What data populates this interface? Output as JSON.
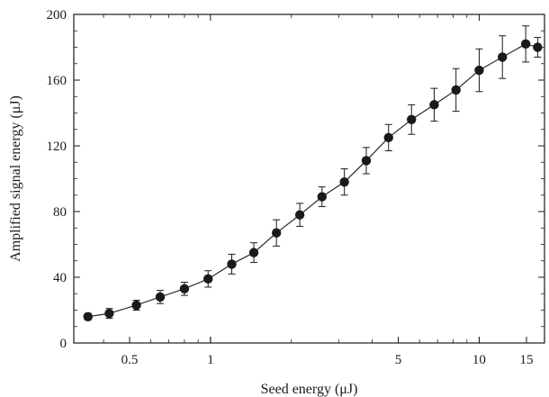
{
  "chart_data": {
    "type": "scatter",
    "title": "",
    "xlabel": "Seed energy (μJ)",
    "ylabel": "Amplified signal energy (μJ)",
    "xscale": "log",
    "xlim": [
      0.31,
      17.5
    ],
    "ylim": [
      0,
      200
    ],
    "xticks": [
      0.5,
      1,
      5,
      10,
      15
    ],
    "xtick_labels": [
      "0.5",
      "1",
      "5",
      "10",
      "15"
    ],
    "yticks": [
      0,
      40,
      80,
      120,
      160,
      200
    ],
    "ytick_labels": [
      "0",
      "40",
      "80",
      "120",
      "160",
      "200"
    ],
    "grid": false,
    "marker": "circle",
    "line": true,
    "color": "#1a1a1a",
    "series": [
      {
        "x": [
          0.35,
          0.42,
          0.53,
          0.65,
          0.8,
          0.98,
          1.2,
          1.45,
          1.76,
          2.15,
          2.6,
          3.15,
          3.8,
          4.6,
          5.6,
          6.8,
          8.2,
          10.0,
          12.2,
          14.9,
          16.5
        ],
        "y": [
          16,
          18,
          23,
          28,
          33,
          39,
          48,
          55,
          67,
          78,
          89,
          98,
          111,
          125,
          136,
          145,
          154,
          166,
          174,
          182,
          180
        ],
        "err": [
          2,
          3,
          3,
          4,
          4,
          5,
          6,
          6,
          8,
          7,
          6,
          8,
          8,
          8,
          9,
          10,
          13,
          13,
          13,
          11,
          6
        ]
      }
    ]
  }
}
